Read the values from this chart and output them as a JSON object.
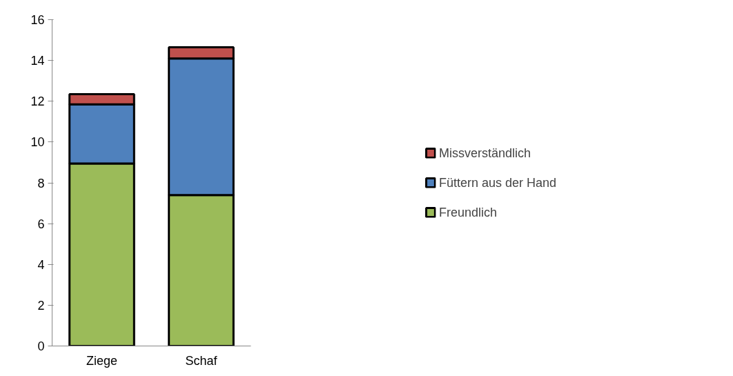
{
  "chart_data": {
    "type": "bar",
    "stacked": true,
    "categories": [
      "Ziege",
      "Schaf"
    ],
    "series": [
      {
        "name": "Freundlich",
        "color": "#9bbb59",
        "values": [
          8.95,
          7.4
        ]
      },
      {
        "name": "Füttern aus der Hand",
        "color": "#4f81bd",
        "values": [
          2.9,
          6.7
        ]
      },
      {
        "name": "Missverständlich",
        "color": "#c0504d",
        "values": [
          0.5,
          0.55
        ]
      }
    ],
    "ylim": [
      0,
      16
    ],
    "yticks": [
      0,
      2,
      4,
      6,
      8,
      10,
      12,
      14,
      16
    ],
    "grid": false,
    "legend": "right"
  }
}
